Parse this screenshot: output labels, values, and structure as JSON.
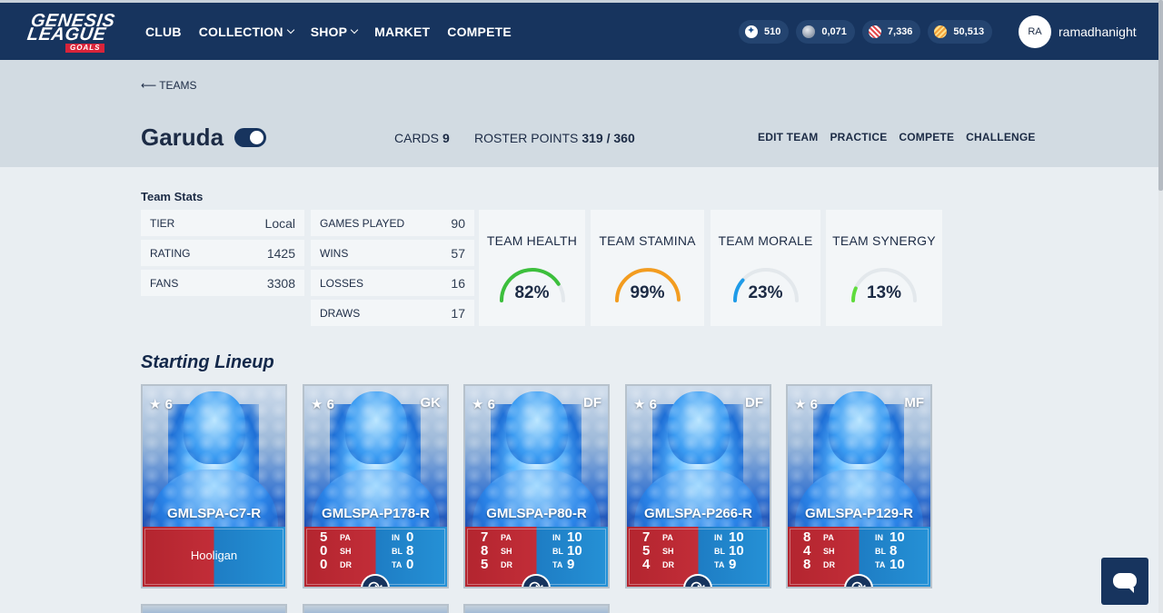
{
  "nav": {
    "logo_line1": "GENESIS",
    "logo_line2": "LEAGUE",
    "logo_line3": "GOALS",
    "links": [
      {
        "label": "CLUB",
        "dropdown": false
      },
      {
        "label": "COLLECTION",
        "dropdown": true
      },
      {
        "label": "SHOP",
        "dropdown": true
      },
      {
        "label": "MARKET",
        "dropdown": false
      },
      {
        "label": "COMPETE",
        "dropdown": false
      }
    ],
    "currencies": [
      {
        "value": "510",
        "icon": "star-token-icon"
      },
      {
        "value": "0,071",
        "icon": "ball-token-icon"
      },
      {
        "value": "7,336",
        "icon": "red-token-icon"
      },
      {
        "value": "50,513",
        "icon": "gold-token-icon"
      }
    ],
    "user": {
      "initials": "RA",
      "name": "ramadhanight"
    }
  },
  "team": {
    "back_label": "TEAMS",
    "name": "Garuda",
    "cards_label": "CARDS",
    "cards_value": "9",
    "roster_label": "ROSTER POINTS",
    "roster_value": "319 / 360",
    "actions": [
      "EDIT TEAM",
      "PRACTICE",
      "COMPETE",
      "CHALLENGE"
    ]
  },
  "stats": {
    "title": "Team Stats",
    "left": [
      {
        "label": "TIER",
        "value": "Local"
      },
      {
        "label": "RATING",
        "value": "1425"
      },
      {
        "label": "FANS",
        "value": "3308"
      }
    ],
    "mid": [
      {
        "label": "GAMES PLAYED",
        "value": "90"
      },
      {
        "label": "WINS",
        "value": "57"
      },
      {
        "label": "LOSSES",
        "value": "16"
      },
      {
        "label": "DRAWS",
        "value": "17"
      }
    ],
    "meters": [
      {
        "label": "TEAM HEALTH",
        "value": "82%",
        "pct": 82,
        "color": "#3cbf3c"
      },
      {
        "label": "TEAM STAMINA",
        "value": "99%",
        "pct": 99,
        "color": "#f39c1f"
      },
      {
        "label": "TEAM MORALE",
        "value": "23%",
        "pct": 23,
        "color": "#1e9be8"
      },
      {
        "label": "TEAM SYNERGY",
        "value": "13%",
        "pct": 13,
        "color": "#5fdc3c"
      }
    ]
  },
  "lineup": {
    "title": "Starting Lineup",
    "cards": [
      {
        "stars": "★ 6",
        "pos": "",
        "name": "GMLSPA-C7-R",
        "trait": "Hooligan"
      },
      {
        "stars": "★ 6",
        "pos": "GK",
        "name": "GMLSPA-P178-R",
        "pa": "5",
        "sh": "0",
        "dr": "0",
        "in": "0",
        "bl": "8",
        "ta": "0"
      },
      {
        "stars": "★ 6",
        "pos": "DF",
        "name": "GMLSPA-P80-R",
        "pa": "7",
        "sh": "8",
        "dr": "5",
        "in": "10",
        "bl": "10",
        "ta": "9"
      },
      {
        "stars": "★ 6",
        "pos": "DF",
        "name": "GMLSPA-P266-R",
        "pa": "7",
        "sh": "5",
        "dr": "4",
        "in": "10",
        "bl": "10",
        "ta": "9"
      },
      {
        "stars": "★ 6",
        "pos": "MF",
        "name": "GMLSPA-P129-R",
        "pa": "8",
        "sh": "4",
        "dr": "8",
        "in": "10",
        "bl": "8",
        "ta": "10"
      }
    ],
    "stat_keys": {
      "pa": "PA",
      "sh": "SH",
      "dr": "DR",
      "in": "IN",
      "bl": "BL",
      "ta": "TA"
    }
  }
}
